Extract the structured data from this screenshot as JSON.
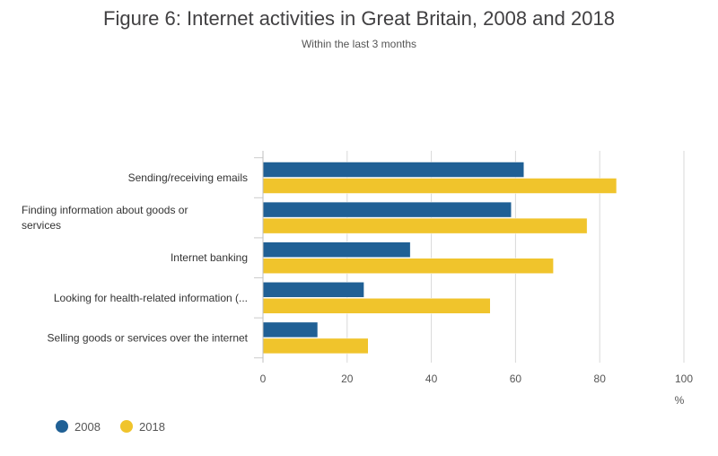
{
  "chart_data": {
    "type": "bar",
    "orientation": "horizontal",
    "title": "Figure 6: Internet activities in Great Britain, 2008 and 2018",
    "subtitle": "Within the last 3 months",
    "xlabel": "%",
    "xlim": [
      0,
      100
    ],
    "xticks": [
      "0",
      "20",
      "40",
      "60",
      "80",
      "100"
    ],
    "grid": true,
    "legend_position": "bottom-left",
    "categories": [
      [
        "Sending/receiving emails"
      ],
      [
        "Finding information about goods or",
        "services"
      ],
      [
        "Internet banking"
      ],
      [
        "Looking for health-related information (..."
      ],
      [
        "Selling goods or services over the internet"
      ]
    ],
    "series": [
      {
        "name": "2008",
        "color": "#206095",
        "values": [
          62,
          59,
          35,
          24,
          13
        ]
      },
      {
        "name": "2018",
        "color": "#F0C42C",
        "values": [
          84,
          77,
          69,
          54,
          25
        ]
      }
    ]
  }
}
